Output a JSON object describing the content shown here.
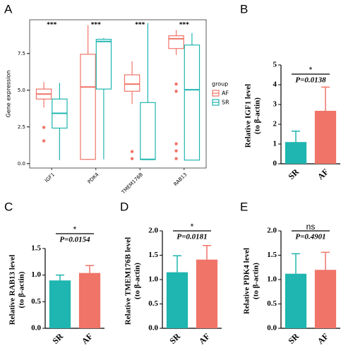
{
  "chart_data": [
    {
      "type": "box",
      "panel": "A",
      "ylabel": "Gene expression",
      "categories": [
        "IGF1",
        "PDK4",
        "TMEM176B",
        "RAB13"
      ],
      "annotations": [
        "***",
        "***",
        "***",
        "***"
      ],
      "legend_title": "group",
      "ylim": [
        -0.3,
        9.8
      ],
      "yticks": [
        {
          "value": 0,
          "label": "0.0"
        },
        2.5,
        {
          "value": 5,
          "label": "5.0"
        },
        7.5
      ],
      "series": [
        {
          "name": "AF",
          "color": "#f07468",
          "whisker_low": [
            3.82,
            0.24,
            4.06,
            7.4
          ],
          "q1": [
            4.4,
            0.29,
            4.93,
            7.84
          ],
          "median": [
            4.74,
            5.22,
            5.42,
            8.51
          ],
          "q3": [
            5.08,
            7.45,
            6.05,
            8.71
          ],
          "whisker_high": [
            5.56,
            9.43,
            6.97,
            9.1
          ],
          "outliers": [
            [
              2.47,
              1.55
            ],
            [],
            [
              0.82,
              0.34
            ],
            [
              5.42,
              4.93,
              1.35,
              0.87,
              0.34
            ]
          ]
        },
        {
          "name": "SR",
          "color": "#1fb5b0",
          "whisker_low": [
            0.24,
            0.29,
            0.24,
            0.24
          ],
          "q1": [
            2.42,
            5.08,
            0.29,
            0.24
          ],
          "median": [
            3.43,
            8.32,
            0.29,
            5.03
          ],
          "q3": [
            4.4,
            8.47,
            4.16,
            8.08
          ],
          "whisker_high": [
            5.5,
            8.56,
            9.58,
            8.9
          ],
          "outliers": [
            [],
            [],
            [],
            []
          ]
        }
      ]
    },
    {
      "type": "bar",
      "panel": "B",
      "ylabel": [
        "Relative IGF1 level",
        "(to β-actin)"
      ],
      "categories": [
        "SR",
        "AF"
      ],
      "values": [
        1.1,
        2.68
      ],
      "errors": [
        0.55,
        1.2
      ],
      "colors": [
        "#1fb5b0",
        "#f07468"
      ],
      "sig_label": "*",
      "p_label": "P=0.0138",
      "ylim": [
        0,
        5
      ],
      "yticks": [
        0,
        1,
        2,
        3,
        4,
        5
      ]
    },
    {
      "type": "bar",
      "panel": "C",
      "ylabel": [
        "Relative RAB13 level",
        "(to β-actin)"
      ],
      "categories": [
        "SR",
        "AF"
      ],
      "values": [
        0.9,
        1.04
      ],
      "errors": [
        0.1,
        0.14
      ],
      "colors": [
        "#1fb5b0",
        "#f07468"
      ],
      "sig_label": "*",
      "p_label": "P=0.0154",
      "ylim": [
        0,
        1.5
      ],
      "yticks": [
        {
          "value": 0,
          "label": "0.0"
        },
        0.5,
        {
          "value": 1,
          "label": "1.0"
        },
        1.5
      ]
    },
    {
      "type": "bar",
      "panel": "D",
      "ylabel": [
        "Relative TMEM176B level",
        "(to β-actin)"
      ],
      "categories": [
        "SR",
        "AF"
      ],
      "values": [
        1.15,
        1.41
      ],
      "errors": [
        0.34,
        0.29
      ],
      "colors": [
        "#1fb5b0",
        "#f07468"
      ],
      "sig_label": "*",
      "p_label": "P=0.0181",
      "ylim": [
        0,
        2
      ],
      "yticks": [
        {
          "value": 0,
          "label": "0.0"
        },
        0.5,
        {
          "value": 1,
          "label": "1.0"
        },
        1.5,
        {
          "value": 2,
          "label": "2.0"
        }
      ]
    },
    {
      "type": "bar",
      "panel": "E",
      "ylabel": [
        "Relative PDK4 level",
        "(to β-actin)"
      ],
      "categories": [
        "SR",
        "AF"
      ],
      "values": [
        1.12,
        1.2
      ],
      "errors": [
        0.41,
        0.36
      ],
      "colors": [
        "#1fb5b0",
        "#f07468"
      ],
      "sig_label": "ns",
      "p_label": "P=0.4901",
      "ylim": [
        0,
        2
      ],
      "yticks": [
        {
          "value": 0,
          "label": "0.0"
        },
        0.5,
        {
          "value": 1,
          "label": "1.0"
        },
        1.5,
        {
          "value": 2,
          "label": "2.0"
        }
      ]
    }
  ]
}
